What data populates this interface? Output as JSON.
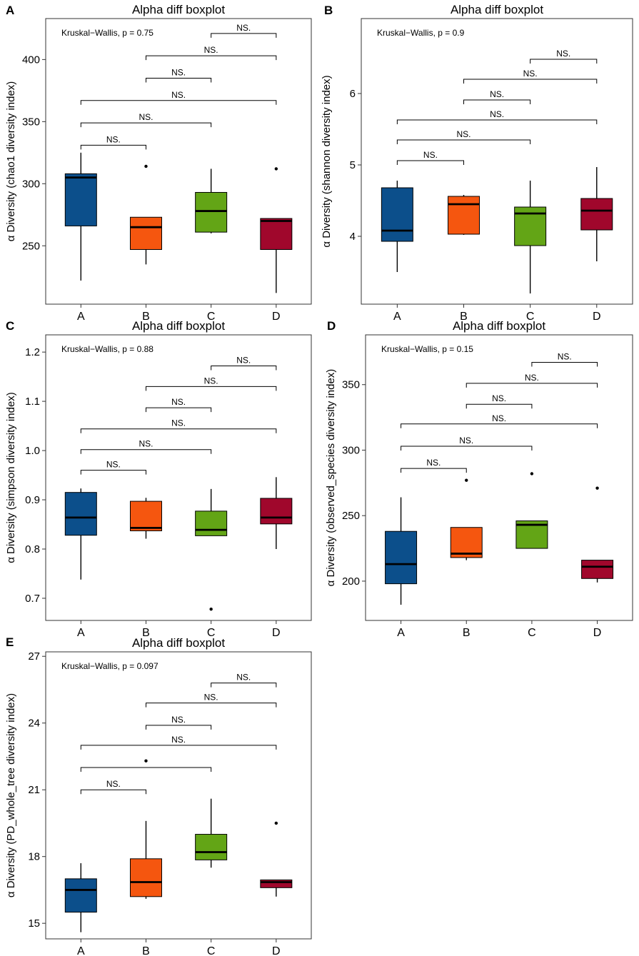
{
  "figure": {
    "colors": {
      "A": "#0c4f8b",
      "B": "#f5560f",
      "C": "#63a516",
      "D": "#a0072c"
    },
    "frame_color": "#333333"
  },
  "chart_data": [
    {
      "id": "A",
      "panel_label": "A",
      "type": "boxplot",
      "title": "Alpha diff boxplot",
      "xlabel": "",
      "ylabel": "α Diversity (chao1 diversity index)",
      "categories": [
        "A",
        "B",
        "C",
        "D"
      ],
      "ylim": [
        203,
        433
      ],
      "yticks": [
        250,
        300,
        350,
        400
      ],
      "ytick_labels": [
        "250",
        "300",
        "350",
        "400"
      ],
      "annotation": "Kruskal−Wallis, p = 0.75",
      "boxes": [
        {
          "group": "A",
          "min": 222,
          "q1": 266,
          "median": 305,
          "q3": 308,
          "max": 325,
          "outliers": []
        },
        {
          "group": "B",
          "min": 235,
          "q1": 247,
          "median": 265,
          "q3": 273,
          "max": 273,
          "outliers": [
            314
          ]
        },
        {
          "group": "C",
          "min": 260,
          "q1": 261,
          "median": 278,
          "q3": 293,
          "max": 312,
          "outliers": []
        },
        {
          "group": "D",
          "min": 212,
          "q1": 247,
          "median": 270,
          "q3": 272,
          "max": 272,
          "outliers": [
            312
          ]
        }
      ],
      "comparisons": [
        {
          "g1": "A",
          "g2": "B",
          "y": 331,
          "label": "NS."
        },
        {
          "g1": "A",
          "g2": "C",
          "y": 349,
          "label": "NS."
        },
        {
          "g1": "A",
          "g2": "D",
          "y": 367,
          "label": "NS."
        },
        {
          "g1": "B",
          "g2": "C",
          "y": 385,
          "label": "NS."
        },
        {
          "g1": "B",
          "g2": "D",
          "y": 403,
          "label": "NS."
        },
        {
          "g1": "C",
          "g2": "D",
          "y": 421,
          "label": "NS."
        }
      ]
    },
    {
      "id": "B",
      "panel_label": "B",
      "type": "boxplot",
      "title": "Alpha diff boxplot",
      "xlabel": "",
      "ylabel": "α Diversity (shannon diversity index)",
      "categories": [
        "A",
        "B",
        "C",
        "D"
      ],
      "ylim": [
        3.05,
        7.05
      ],
      "yticks": [
        4,
        5,
        6
      ],
      "ytick_labels": [
        "4",
        "5",
        "6"
      ],
      "annotation": "Kruskal−Wallis, p = 0.9",
      "boxes": [
        {
          "group": "A",
          "min": 3.5,
          "q1": 3.93,
          "median": 4.08,
          "q3": 4.68,
          "max": 4.78,
          "outliers": []
        },
        {
          "group": "B",
          "min": 4.02,
          "q1": 4.03,
          "median": 4.45,
          "q3": 4.56,
          "max": 4.58,
          "outliers": []
        },
        {
          "group": "C",
          "min": 3.2,
          "q1": 3.87,
          "median": 4.32,
          "q3": 4.41,
          "max": 4.78,
          "outliers": []
        },
        {
          "group": "D",
          "min": 3.65,
          "q1": 4.09,
          "median": 4.36,
          "q3": 4.53,
          "max": 4.97,
          "outliers": []
        }
      ],
      "comparisons": [
        {
          "g1": "A",
          "g2": "B",
          "y": 5.06,
          "label": "NS."
        },
        {
          "g1": "A",
          "g2": "C",
          "y": 5.35,
          "label": "NS."
        },
        {
          "g1": "A",
          "g2": "D",
          "y": 5.63,
          "label": "NS."
        },
        {
          "g1": "B",
          "g2": "C",
          "y": 5.91,
          "label": "NS."
        },
        {
          "g1": "B",
          "g2": "D",
          "y": 6.2,
          "label": "NS."
        },
        {
          "g1": "C",
          "g2": "D",
          "y": 6.48,
          "label": "NS."
        }
      ]
    },
    {
      "id": "C",
      "panel_label": "C",
      "type": "boxplot",
      "title": "Alpha diff boxplot",
      "xlabel": "",
      "ylabel": "α Diversity (simpson diversity index)",
      "categories": [
        "A",
        "B",
        "C",
        "D"
      ],
      "ylim": [
        0.655,
        1.235
      ],
      "yticks": [
        0.7,
        0.8,
        0.9,
        1.0,
        1.1,
        1.2
      ],
      "ytick_labels": [
        "0.7",
        "0.8",
        "0.9",
        "1.0",
        "1.1",
        "1.2"
      ],
      "annotation": "Kruskal−Wallis, p = 0.88",
      "boxes": [
        {
          "group": "A",
          "min": 0.738,
          "q1": 0.828,
          "median": 0.864,
          "q3": 0.915,
          "max": 0.923,
          "outliers": []
        },
        {
          "group": "B",
          "min": 0.821,
          "q1": 0.837,
          "median": 0.843,
          "q3": 0.897,
          "max": 0.904,
          "outliers": []
        },
        {
          "group": "C",
          "min": 0.827,
          "q1": 0.827,
          "median": 0.839,
          "q3": 0.877,
          "max": 0.922,
          "outliers": [
            0.678
          ]
        },
        {
          "group": "D",
          "min": 0.8,
          "q1": 0.851,
          "median": 0.864,
          "q3": 0.903,
          "max": 0.946,
          "outliers": []
        }
      ],
      "comparisons": [
        {
          "g1": "A",
          "g2": "B",
          "y": 0.96,
          "label": "NS."
        },
        {
          "g1": "A",
          "g2": "C",
          "y": 1.002,
          "label": "NS."
        },
        {
          "g1": "A",
          "g2": "D",
          "y": 1.044,
          "label": "NS."
        },
        {
          "g1": "B",
          "g2": "C",
          "y": 1.087,
          "label": "NS."
        },
        {
          "g1": "B",
          "g2": "D",
          "y": 1.13,
          "label": "NS."
        },
        {
          "g1": "C",
          "g2": "D",
          "y": 1.172,
          "label": "NS."
        }
      ]
    },
    {
      "id": "D",
      "panel_label": "D",
      "type": "boxplot",
      "title": "Alpha diff boxplot",
      "xlabel": "",
      "ylabel": "α Diversity (observed_species diversity index)",
      "categories": [
        "A",
        "B",
        "C",
        "D"
      ],
      "ylim": [
        170,
        388
      ],
      "yticks": [
        200,
        250,
        300,
        350
      ],
      "ytick_labels": [
        "200",
        "250",
        "300",
        "350"
      ],
      "annotation": "Kruskal−Wallis, p = 0.15",
      "boxes": [
        {
          "group": "A",
          "min": 182,
          "q1": 198,
          "median": 213,
          "q3": 238,
          "max": 264,
          "outliers": []
        },
        {
          "group": "B",
          "min": 216,
          "q1": 218,
          "median": 221,
          "q3": 241,
          "max": 241,
          "outliers": [
            277
          ]
        },
        {
          "group": "C",
          "min": 225,
          "q1": 225,
          "median": 243,
          "q3": 246,
          "max": 246,
          "outliers": [
            282
          ]
        },
        {
          "group": "D",
          "min": 199,
          "q1": 202,
          "median": 211,
          "q3": 216,
          "max": 216,
          "outliers": [
            271
          ]
        }
      ],
      "comparisons": [
        {
          "g1": "A",
          "g2": "B",
          "y": 286,
          "label": "NS."
        },
        {
          "g1": "A",
          "g2": "C",
          "y": 303,
          "label": "NS."
        },
        {
          "g1": "A",
          "g2": "D",
          "y": 320,
          "label": "NS."
        },
        {
          "g1": "B",
          "g2": "C",
          "y": 335,
          "label": "NS."
        },
        {
          "g1": "B",
          "g2": "D",
          "y": 351,
          "label": "NS."
        },
        {
          "g1": "C",
          "g2": "D",
          "y": 367,
          "label": "NS."
        }
      ]
    },
    {
      "id": "E",
      "panel_label": "E",
      "type": "boxplot",
      "title": "Alpha diff boxplot",
      "xlabel": "",
      "ylabel": "α Diversity (PD_whole_tree diversity index)",
      "categories": [
        "A",
        "B",
        "C",
        "D"
      ],
      "ylim": [
        14.3,
        27.2
      ],
      "yticks": [
        15,
        18,
        21,
        24,
        27
      ],
      "ytick_labels": [
        "15",
        "18",
        "21",
        "24",
        "27"
      ],
      "annotation": "Kruskal−Wallis, p = 0.097",
      "boxes": [
        {
          "group": "A",
          "min": 14.6,
          "q1": 15.5,
          "median": 16.5,
          "q3": 17.0,
          "max": 17.7,
          "outliers": []
        },
        {
          "group": "B",
          "min": 16.1,
          "q1": 16.2,
          "median": 16.85,
          "q3": 17.9,
          "max": 19.6,
          "outliers": [
            22.3
          ]
        },
        {
          "group": "C",
          "min": 17.5,
          "q1": 17.85,
          "median": 18.2,
          "q3": 19.0,
          "max": 20.6,
          "outliers": []
        },
        {
          "group": "D",
          "min": 16.2,
          "q1": 16.6,
          "median": 16.85,
          "q3": 16.95,
          "max": 16.95,
          "outliers": [
            19.5
          ]
        }
      ],
      "comparisons": [
        {
          "g1": "A",
          "g2": "B",
          "y": 21.0,
          "label": "NS."
        },
        {
          "g1": "A",
          "g2": "C",
          "y": 22.0,
          "label": ""
        },
        {
          "g1": "A",
          "g2": "D",
          "y": 23.0,
          "label": "NS."
        },
        {
          "g1": "B",
          "g2": "C",
          "y": 23.9,
          "label": "NS."
        },
        {
          "g1": "B",
          "g2": "D",
          "y": 24.9,
          "label": "NS."
        },
        {
          "g1": "C",
          "g2": "D",
          "y": 25.8,
          "label": "NS."
        }
      ]
    }
  ]
}
